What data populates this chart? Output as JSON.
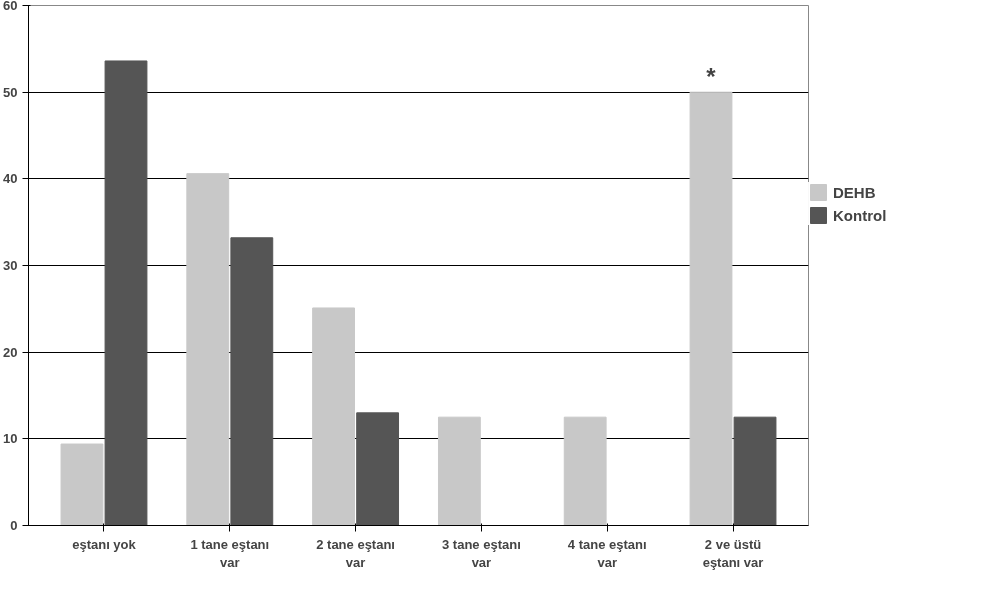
{
  "chart_data": {
    "type": "bar",
    "categories": [
      "eştanı yok",
      "1 tane eştanı var",
      "2 tane eştanı var",
      "3 tane eştanı var",
      "4 tane eştanı var",
      "2 ve üstü eştanı var"
    ],
    "series": [
      {
        "name": "DEHB",
        "color": "#c8c8c8",
        "values": [
          9.4,
          40.6,
          25.1,
          12.5,
          12.5,
          50
        ]
      },
      {
        "name": "Kontrol",
        "color": "#555555",
        "values": [
          53.6,
          33.2,
          13,
          0,
          0,
          12.5
        ]
      }
    ],
    "ylim": [
      0,
      60
    ],
    "yticks": [
      0,
      10,
      20,
      30,
      40,
      50,
      60
    ],
    "grid": "y",
    "legend": "right",
    "annotations": [
      {
        "text": "*",
        "x": "2 ve üstü eştanı var",
        "y": 50
      }
    ]
  }
}
